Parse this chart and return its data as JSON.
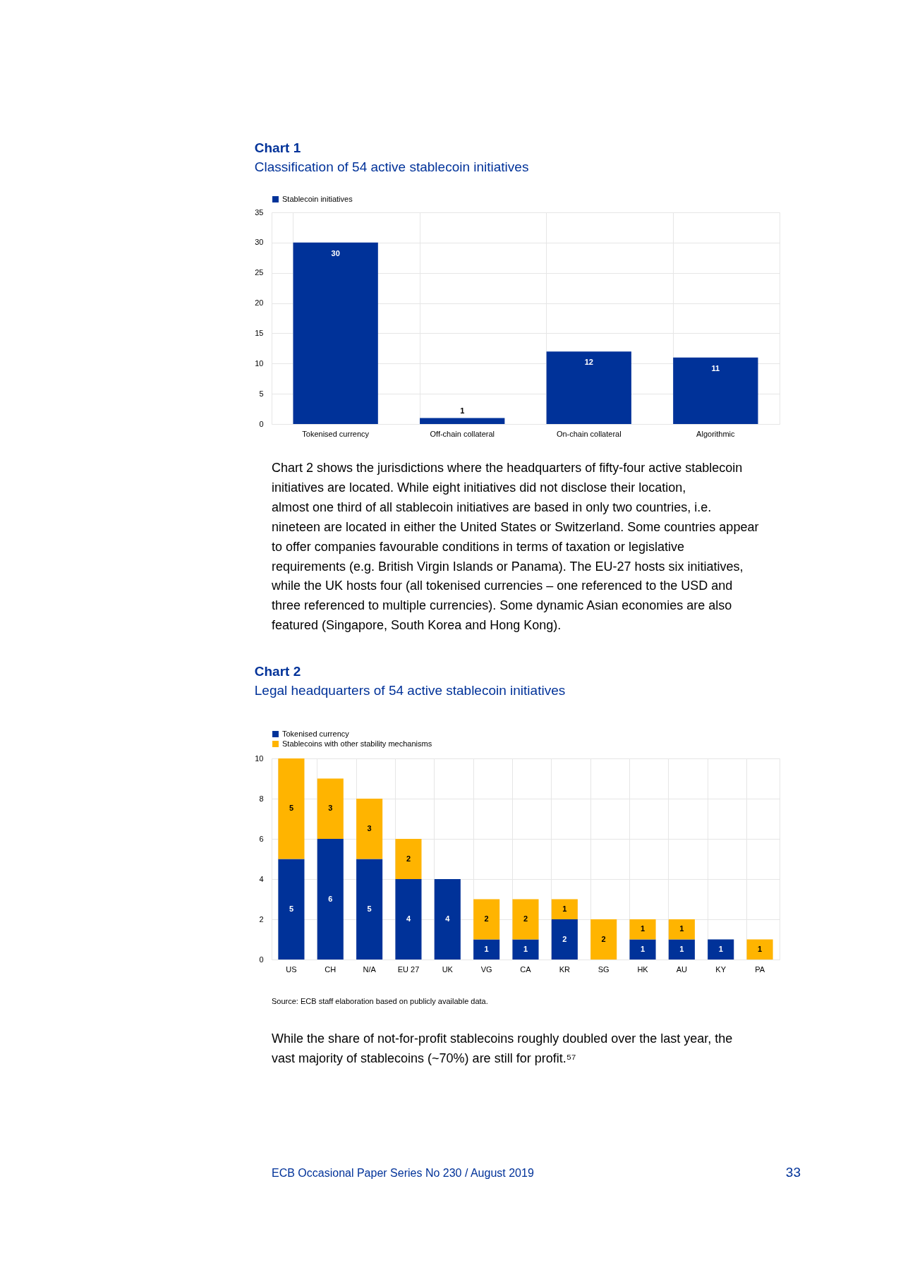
{
  "chart_data": [
    {
      "type": "bar",
      "title": "Chart 1",
      "subtitle": "Classification of 54 active stablecoin initiatives",
      "categories": [
        "Tokenised currency",
        "Off-chain collateral",
        "On-chain collateral",
        "Algorithmic"
      ],
      "series": [
        {
          "name": "Stablecoin initiatives",
          "color": "#003299",
          "values": [
            30,
            1,
            12,
            11
          ]
        }
      ],
      "ylim": [
        0,
        35
      ],
      "yticks": [
        0,
        5,
        10,
        15,
        20,
        25,
        30,
        35
      ],
      "grid": true,
      "legend": "top left",
      "data_labels": true,
      "annotations": [
        "Chart 2 shows the jurisdictions where the headquarters of fifty-four active stablecoin initiatives are located. While eight initiatives did not disclose their location, almost one third of all stablecoin initiatives are based in only two countries, i.e. nineteen are located in either the United States or Switzerland. Some countries appear to offer companies favourable conditions in terms of taxation or legislative requirements (e.g. British Virgin Islands or Panama). The EU-27 hosts six initiatives, while the UK hosts four (all tokenised currencies – one referenced to the USD and three referenced to multiple currencies). Some dynamic Asian economies are also featured (Singapore, South Korea and Hong Kong)."
      ]
    },
    {
      "type": "bar",
      "title": "Chart 2",
      "subtitle": "Legal headquarters of 54 active stablecoin initiatives",
      "stacked": true,
      "categories": [
        "US",
        "CH",
        "N/A",
        "EU 27",
        "UK",
        "VG",
        "CA",
        "KR",
        "SG",
        "HK",
        "AU",
        "KY",
        "PA"
      ],
      "series": [
        {
          "name": "Tokenised currency",
          "color": "#003299",
          "values": [
            5,
            6,
            5,
            4,
            4,
            1,
            1,
            2,
            null,
            1,
            1,
            1,
            null
          ]
        },
        {
          "name": "Stablecoins with other stability mechanisms",
          "color": "#ffb400",
          "values": [
            5,
            3,
            3,
            2,
            null,
            2,
            2,
            1,
            2,
            1,
            1,
            null,
            1
          ]
        }
      ],
      "ylim": [
        0,
        10
      ],
      "yticks": [
        0,
        2,
        4,
        6,
        8,
        10
      ],
      "grid": true,
      "legend": "top left",
      "data_labels": true,
      "annotations": [
        "Source: ECB staff elaboration based on publicly available data.",
        "While the share of not-for-profit stablecoins roughly doubled over the last year, the vast majority of stablecoins (~70%) are still for profit.⁵⁷",
        "ECB Occasional Paper Series No 230 / August 2019",
        "33"
      ]
    }
  ]
}
